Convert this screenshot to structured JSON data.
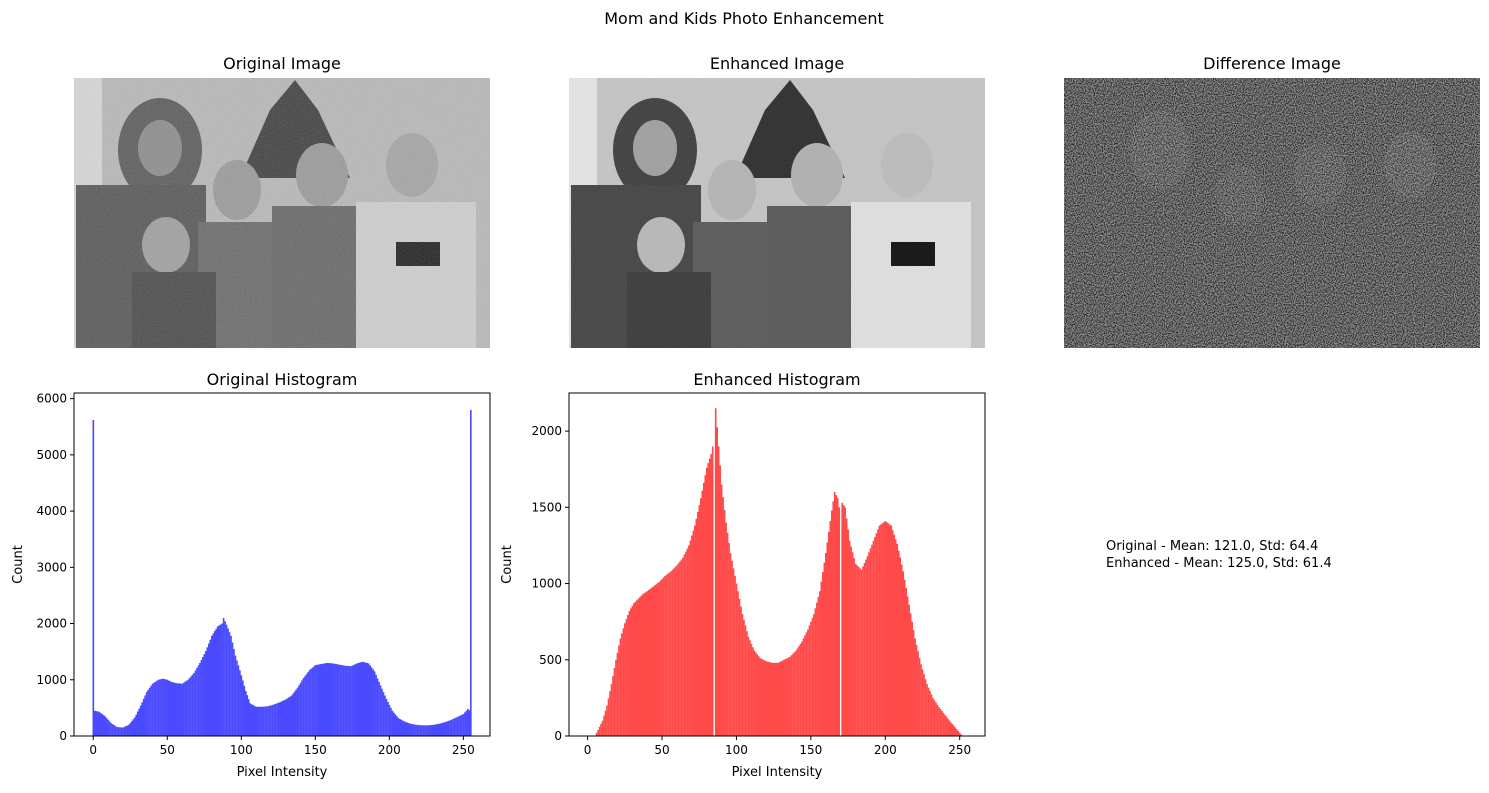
{
  "figure": {
    "suptitle": "Mom and Kids Photo Enhancement"
  },
  "panels": {
    "original_image": {
      "title": "Original Image"
    },
    "enhanced_image": {
      "title": "Enhanced Image"
    },
    "difference_image": {
      "title": "Difference Image"
    }
  },
  "stats": {
    "original": "Original - Mean: 121.0, Std: 64.4",
    "enhanced": "Enhanced - Mean: 125.0, Std: 61.4"
  },
  "colors": {
    "original_hist": "#4a4aff",
    "enhanced_hist": "#ff4a4a",
    "axis": "#000000"
  },
  "chart_data": [
    {
      "type": "bar",
      "title": "Original Histogram",
      "xlabel": "Pixel Intensity",
      "ylabel": "Count",
      "xlim": [
        -13,
        268
      ],
      "ylim": [
        0,
        6100
      ],
      "xticks": [
        0,
        50,
        100,
        150,
        200,
        250
      ],
      "yticks": [
        0,
        1000,
        2000,
        3000,
        4000,
        5000,
        6000
      ],
      "bins": 256,
      "series": [
        {
          "color": "#4a4aff",
          "points": [
            [
              0,
              5620
            ],
            [
              1,
              450
            ],
            [
              4,
              430
            ],
            [
              8,
              350
            ],
            [
              12,
              230
            ],
            [
              16,
              160
            ],
            [
              20,
              150
            ],
            [
              24,
              200
            ],
            [
              28,
              330
            ],
            [
              32,
              540
            ],
            [
              36,
              780
            ],
            [
              40,
              930
            ],
            [
              44,
              1000
            ],
            [
              47,
              1020
            ],
            [
              50,
              1000
            ],
            [
              53,
              960
            ],
            [
              56,
              940
            ],
            [
              60,
              930
            ],
            [
              64,
              1000
            ],
            [
              68,
              1120
            ],
            [
              72,
              1300
            ],
            [
              76,
              1510
            ],
            [
              80,
              1780
            ],
            [
              84,
              1950
            ],
            [
              87,
              2000
            ],
            [
              88,
              2100
            ],
            [
              90,
              1980
            ],
            [
              93,
              1780
            ],
            [
              96,
              1430
            ],
            [
              100,
              1080
            ],
            [
              103,
              800
            ],
            [
              106,
              580
            ],
            [
              110,
              520
            ],
            [
              114,
              520
            ],
            [
              118,
              530
            ],
            [
              122,
              560
            ],
            [
              126,
              600
            ],
            [
              130,
              650
            ],
            [
              134,
              720
            ],
            [
              138,
              860
            ],
            [
              142,
              1030
            ],
            [
              146,
              1170
            ],
            [
              150,
              1260
            ],
            [
              154,
              1280
            ],
            [
              158,
              1300
            ],
            [
              162,
              1290
            ],
            [
              166,
              1270
            ],
            [
              170,
              1250
            ],
            [
              174,
              1240
            ],
            [
              178,
              1290
            ],
            [
              182,
              1320
            ],
            [
              186,
              1290
            ],
            [
              190,
              1150
            ],
            [
              194,
              900
            ],
            [
              198,
              660
            ],
            [
              202,
              450
            ],
            [
              206,
              320
            ],
            [
              210,
              260
            ],
            [
              214,
              220
            ],
            [
              218,
              200
            ],
            [
              222,
              190
            ],
            [
              226,
              190
            ],
            [
              230,
              200
            ],
            [
              234,
              220
            ],
            [
              238,
              250
            ],
            [
              242,
              290
            ],
            [
              246,
              340
            ],
            [
              250,
              390
            ],
            [
              253,
              480
            ],
            [
              254,
              460
            ],
            [
              255,
              5800
            ]
          ]
        }
      ]
    },
    {
      "type": "bar",
      "title": "Enhanced Histogram",
      "xlabel": "Pixel Intensity",
      "ylabel": "Count",
      "xlim": [
        -12.5,
        267
      ],
      "ylim": [
        0,
        2250
      ],
      "xticks": [
        0,
        50,
        100,
        150,
        200,
        250
      ],
      "yticks": [
        0,
        500,
        1000,
        1500,
        2000
      ],
      "bins": 256,
      "series": [
        {
          "color": "#ff4a4a",
          "points": [
            [
              0,
              0
            ],
            [
              5,
              0
            ],
            [
              7,
              40
            ],
            [
              10,
              100
            ],
            [
              13,
              200
            ],
            [
              16,
              340
            ],
            [
              19,
              500
            ],
            [
              22,
              640
            ],
            [
              25,
              740
            ],
            [
              28,
              820
            ],
            [
              31,
              870
            ],
            [
              34,
              900
            ],
            [
              37,
              930
            ],
            [
              40,
              950
            ],
            [
              44,
              980
            ],
            [
              48,
              1010
            ],
            [
              52,
              1050
            ],
            [
              56,
              1080
            ],
            [
              60,
              1120
            ],
            [
              64,
              1170
            ],
            [
              68,
              1250
            ],
            [
              72,
              1380
            ],
            [
              76,
              1560
            ],
            [
              80,
              1760
            ],
            [
              83,
              1850
            ],
            [
              84,
              1900
            ],
            [
              85,
              0
            ],
            [
              86,
              2150
            ],
            [
              88,
              1900
            ],
            [
              90,
              1650
            ],
            [
              93,
              1400
            ],
            [
              96,
              1200
            ],
            [
              100,
              1000
            ],
            [
              104,
              800
            ],
            [
              108,
              650
            ],
            [
              112,
              560
            ],
            [
              116,
              510
            ],
            [
              120,
              490
            ],
            [
              124,
              480
            ],
            [
              128,
              480
            ],
            [
              132,
              500
            ],
            [
              136,
              520
            ],
            [
              140,
              560
            ],
            [
              144,
              620
            ],
            [
              148,
              700
            ],
            [
              152,
              800
            ],
            [
              156,
              950
            ],
            [
              160,
              1200
            ],
            [
              164,
              1480
            ],
            [
              166,
              1600
            ],
            [
              168,
              1560
            ],
            [
              169,
              1500
            ],
            [
              170,
              0
            ],
            [
              171,
              1530
            ],
            [
              173,
              1500
            ],
            [
              176,
              1280
            ],
            [
              180,
              1130
            ],
            [
              184,
              1090
            ],
            [
              188,
              1180
            ],
            [
              192,
              1280
            ],
            [
              196,
              1380
            ],
            [
              200,
              1410
            ],
            [
              204,
              1380
            ],
            [
              208,
              1260
            ],
            [
              212,
              1080
            ],
            [
              216,
              860
            ],
            [
              220,
              640
            ],
            [
              224,
              470
            ],
            [
              228,
              340
            ],
            [
              232,
              250
            ],
            [
              236,
              190
            ],
            [
              240,
              140
            ],
            [
              244,
              90
            ],
            [
              248,
              45
            ],
            [
              251,
              10
            ],
            [
              252,
              0
            ]
          ]
        }
      ]
    }
  ]
}
